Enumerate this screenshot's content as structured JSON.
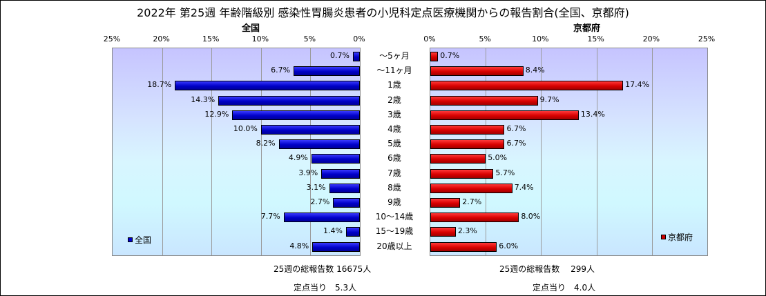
{
  "title": "2022年 第25週 年齢階級別 感染性胃腸炎患者の小児科定点医療機関からの報告割合(全国、京都府)",
  "chart_data": [
    {
      "type": "bar",
      "orientation": "horizontal",
      "direction": "right-to-left",
      "panel_label": "全国",
      "legend": "全国",
      "legend_placement": "bottom-left",
      "color": "#0000cc",
      "xlim": [
        0,
        25
      ],
      "x_ticks": [
        "25%",
        "20%",
        "15%",
        "10%",
        "5%",
        "0%"
      ],
      "categories": [
        "～5ヶ月",
        "～11ヶ月",
        "1歳",
        "2歳",
        "3歳",
        "4歳",
        "5歳",
        "6歳",
        "7歳",
        "8歳",
        "9歳",
        "10～14歳",
        "15～19歳",
        "20歳以上"
      ],
      "values": [
        0.7,
        6.7,
        18.7,
        14.3,
        12.9,
        10.0,
        8.2,
        4.9,
        3.9,
        3.1,
        2.7,
        7.7,
        1.4,
        4.8
      ],
      "labels": [
        "0.7%",
        "6.7%",
        "18.7%",
        "14.3%",
        "12.9%",
        "10.0%",
        "8.2%",
        "4.9%",
        "3.9%",
        "3.1%",
        "2.7%",
        "7.7%",
        "1.4%",
        "4.8%"
      ],
      "grid": true
    },
    {
      "type": "bar",
      "orientation": "horizontal",
      "direction": "left-to-right",
      "panel_label": "京都府",
      "legend": "京都府",
      "legend_placement": "bottom-right",
      "color": "#cc0000",
      "xlim": [
        0,
        25
      ],
      "x_ticks": [
        "0%",
        "5%",
        "10%",
        "15%",
        "20%",
        "25%"
      ],
      "categories": [
        "～5ヶ月",
        "～11ヶ月",
        "1歳",
        "2歳",
        "3歳",
        "4歳",
        "5歳",
        "6歳",
        "7歳",
        "8歳",
        "9歳",
        "10～14歳",
        "15～19歳",
        "20歳以上"
      ],
      "values": [
        0.7,
        8.4,
        17.4,
        9.7,
        13.4,
        6.7,
        6.7,
        5.0,
        5.7,
        7.4,
        2.7,
        8.0,
        2.3,
        6.0
      ],
      "labels": [
        "0.7%",
        "8.4%",
        "17.4%",
        "9.7%",
        "13.4%",
        "6.7%",
        "6.7%",
        "5.0%",
        "5.7%",
        "7.4%",
        "2.7%",
        "8.0%",
        "2.3%",
        "6.0%"
      ],
      "grid": true
    }
  ],
  "footer": {
    "national_total": "25週の総報告数 16675人",
    "national_per_site": "定点当り　5.3人",
    "kyoto_total": "25週の総報告数　 299人",
    "kyoto_per_site": "定点当り　4.0人"
  }
}
